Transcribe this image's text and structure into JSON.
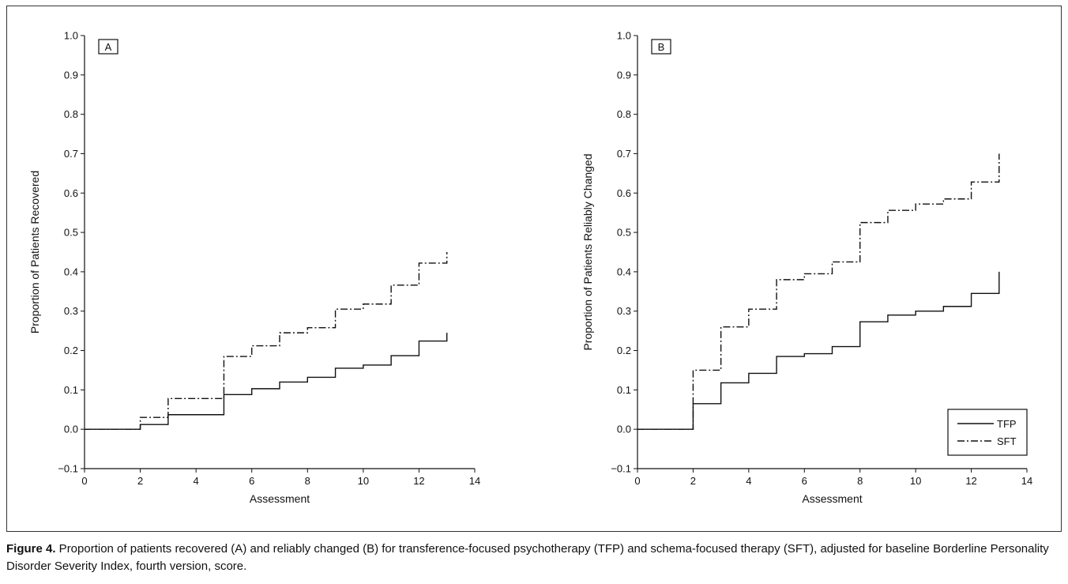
{
  "caption": {
    "label": "Figure 4.",
    "text": " Proportion of patients recovered (A) and reliably changed (B) for transference-focused psychotherapy (TFP) and schema-focused therapy (SFT), adjusted for baseline Borderline Personality Disorder Severity Index, fourth version, score."
  },
  "style": {
    "line_color": "#111111",
    "background": "#ffffff"
  },
  "chart_data": [
    {
      "type": "line",
      "step": true,
      "panel_label": "A",
      "title": "",
      "xlabel": "Assessment",
      "ylabel": "Proportion of Patients Recovered",
      "xlim": [
        0,
        14
      ],
      "ylim": [
        -0.1,
        1.0
      ],
      "xticks": [
        0,
        2,
        4,
        6,
        8,
        10,
        12,
        14
      ],
      "yticks": [
        -0.1,
        0.0,
        0.1,
        0.2,
        0.3,
        0.4,
        0.5,
        0.6,
        0.7,
        0.8,
        0.9,
        1.0
      ],
      "ytick_labels": [
        "−0.1",
        "0.0",
        "0.1",
        "0.2",
        "0.3",
        "0.4",
        "0.5",
        "0.6",
        "0.7",
        "0.8",
        "0.9",
        "1.0"
      ],
      "legend": null,
      "series": [
        {
          "name": "TFP",
          "dash": "solid",
          "x": [
            0,
            2,
            3,
            5,
            6,
            7,
            8,
            9,
            10,
            11,
            12,
            13
          ],
          "y": [
            0.0,
            0.012,
            0.037,
            0.088,
            0.103,
            0.12,
            0.132,
            0.155,
            0.163,
            0.187,
            0.224,
            0.245
          ]
        },
        {
          "name": "SFT",
          "dash": "dashed",
          "x": [
            0,
            2,
            3,
            5,
            6,
            7,
            8,
            9,
            10,
            11,
            12,
            13
          ],
          "y": [
            0.0,
            0.03,
            0.078,
            0.185,
            0.212,
            0.245,
            0.258,
            0.305,
            0.318,
            0.366,
            0.422,
            0.45
          ]
        }
      ]
    },
    {
      "type": "line",
      "step": true,
      "panel_label": "B",
      "title": "",
      "xlabel": "Assessment",
      "ylabel": "Proportion of Patients Reliably Changed",
      "xlim": [
        0,
        14
      ],
      "ylim": [
        -0.1,
        1.0
      ],
      "xticks": [
        0,
        2,
        4,
        6,
        8,
        10,
        12,
        14
      ],
      "yticks": [
        -0.1,
        0.0,
        0.1,
        0.2,
        0.3,
        0.4,
        0.5,
        0.6,
        0.7,
        0.8,
        0.9,
        1.0
      ],
      "ytick_labels": [
        "−0.1",
        "0.0",
        "0.1",
        "0.2",
        "0.3",
        "0.4",
        "0.5",
        "0.6",
        "0.7",
        "0.8",
        "0.9",
        "1.0"
      ],
      "legend": {
        "position": "bottom-right",
        "entries": [
          "TFP",
          "SFT"
        ]
      },
      "series": [
        {
          "name": "TFP",
          "dash": "solid",
          "x": [
            0,
            2,
            3,
            4,
            5,
            6,
            7,
            8,
            9,
            10,
            11,
            12,
            13
          ],
          "y": [
            0.0,
            0.065,
            0.118,
            0.142,
            0.185,
            0.192,
            0.21,
            0.273,
            0.29,
            0.3,
            0.312,
            0.345,
            0.4
          ]
        },
        {
          "name": "SFT",
          "dash": "dashed",
          "x": [
            0,
            2,
            3,
            4,
            5,
            6,
            7,
            8,
            9,
            10,
            11,
            12,
            13
          ],
          "y": [
            0.0,
            0.15,
            0.26,
            0.305,
            0.38,
            0.395,
            0.425,
            0.525,
            0.556,
            0.572,
            0.585,
            0.628,
            0.7
          ]
        }
      ]
    }
  ]
}
